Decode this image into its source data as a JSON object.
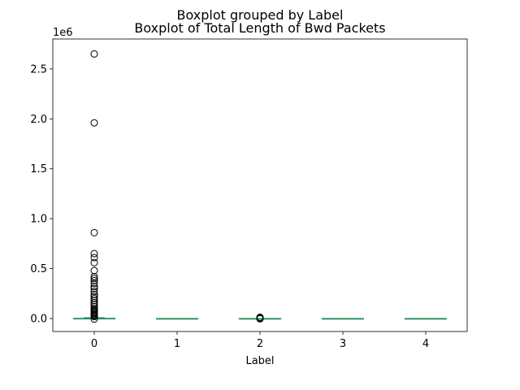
{
  "chart_data": {
    "type": "boxplot",
    "suptitle": "Boxplot grouped by Label",
    "title": "Boxplot of Total Length of Bwd Packets",
    "xlabel": "Label",
    "ylabel": "",
    "y_offset_label": "1e6",
    "y_scale": 1000000,
    "categories": [
      "0",
      "1",
      "2",
      "3",
      "4"
    ],
    "ylim": [
      -130000,
      2800000
    ],
    "y_ticks": [
      0,
      500000,
      1000000,
      1500000,
      2000000,
      2500000
    ],
    "y_tick_labels": [
      "0.0",
      "0.5",
      "1.0",
      "1.5",
      "2.0",
      "2.5"
    ],
    "boxes": [
      {
        "label": "0",
        "q1": 0,
        "median": 100,
        "q3": 2000,
        "whisker_low": 0,
        "whisker_high": 8000,
        "outliers": [
          2650000,
          1960000,
          860000,
          650000,
          610000,
          560000,
          480000,
          420000,
          400000,
          380000,
          350000,
          320000,
          300000,
          270000,
          240000,
          220000,
          200000,
          180000,
          160000,
          140000,
          120000,
          100000,
          90000,
          80000,
          70000,
          60000,
          50000,
          40000,
          30000,
          20000,
          -5000
        ]
      },
      {
        "label": "1",
        "q1": 0,
        "median": 0,
        "q3": 0,
        "whisker_low": 0,
        "whisker_high": 0,
        "outliers": []
      },
      {
        "label": "2",
        "q1": 0,
        "median": 0,
        "q3": 100,
        "whisker_low": 0,
        "whisker_high": 200,
        "outliers": [
          5000,
          10000,
          12000,
          -3000
        ]
      },
      {
        "label": "3",
        "q1": 0,
        "median": 0,
        "q3": 0,
        "whisker_low": 0,
        "whisker_high": 0,
        "outliers": []
      },
      {
        "label": "4",
        "q1": 0,
        "median": 0,
        "q3": 0,
        "whisker_low": 0,
        "whisker_high": 0,
        "outliers": []
      }
    ],
    "colors": {
      "box": "#1f77b4",
      "median": "#2ca02c",
      "whisker": "#1f77b4",
      "outlier": "#000000"
    },
    "grid": false
  }
}
